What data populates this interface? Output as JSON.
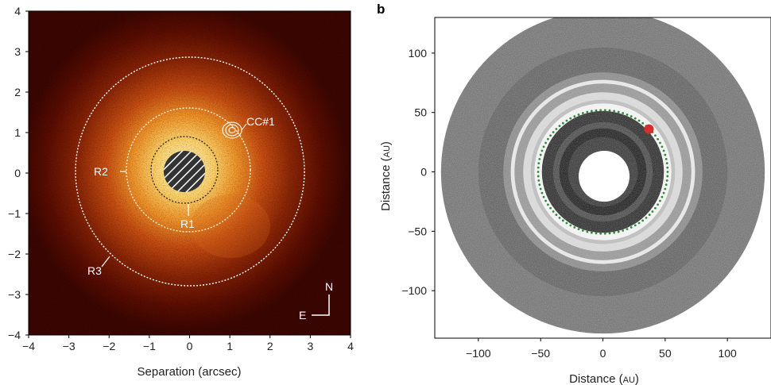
{
  "figure": {
    "panel_a": {
      "xlabel": "Separation (arcsec)",
      "x_ticks": [
        "−4",
        "−3",
        "−2",
        "−1",
        "0",
        "1",
        "2",
        "3",
        "4"
      ],
      "y_ticks": [
        "4",
        "3",
        "2",
        "1",
        "0",
        "−1",
        "−2",
        "−3",
        "−4"
      ],
      "labels": {
        "companion": "CC#1",
        "ring1": "R1",
        "ring2": "R2",
        "ring3": "R3",
        "compass_north": "N",
        "compass_east": "E"
      }
    },
    "panel_b": {
      "letter": "b",
      "xlabel_main": "Distance (",
      "xlabel_unit": "AU",
      "xlabel_close": ")",
      "ylabel_main": "Distance (",
      "ylabel_unit": "AU",
      "ylabel_close": ")",
      "x_ticks": [
        "−100",
        "−50",
        "0",
        "50",
        "100"
      ],
      "y_ticks": [
        "100",
        "50",
        "0",
        "−50",
        "−100"
      ]
    }
  },
  "chart_data": [
    {
      "type": "heatmap",
      "x_range": [
        -4,
        4
      ],
      "y_range": [
        -4,
        4
      ],
      "xlabel": "Separation (arcsec)",
      "ylabel": "",
      "ring_radii_arcsec": {
        "R1": 0.85,
        "R2": 1.5,
        "R3": 2.8
      },
      "companion_position_arcsec": [
        1.05,
        1.0
      ],
      "colors": {
        "background": "#5a0a00",
        "disk": "#e87a1e",
        "ring": "#f0d9b0"
      }
    },
    {
      "type": "scatter",
      "x_range": [
        -135,
        135
      ],
      "y_range": [
        -140,
        130
      ],
      "xlabel": "Distance (AU)",
      "ylabel": "Distance (AU)",
      "inner_hole_radius_au": 20,
      "outer_disk_radius_au": 130,
      "planet_orbit_radius_au": 52,
      "planet_position_au": [
        37,
        36
      ],
      "colors": {
        "particles": "#444444",
        "orbit": "#2f8a3a",
        "planet": "#d62d2d"
      }
    }
  ]
}
